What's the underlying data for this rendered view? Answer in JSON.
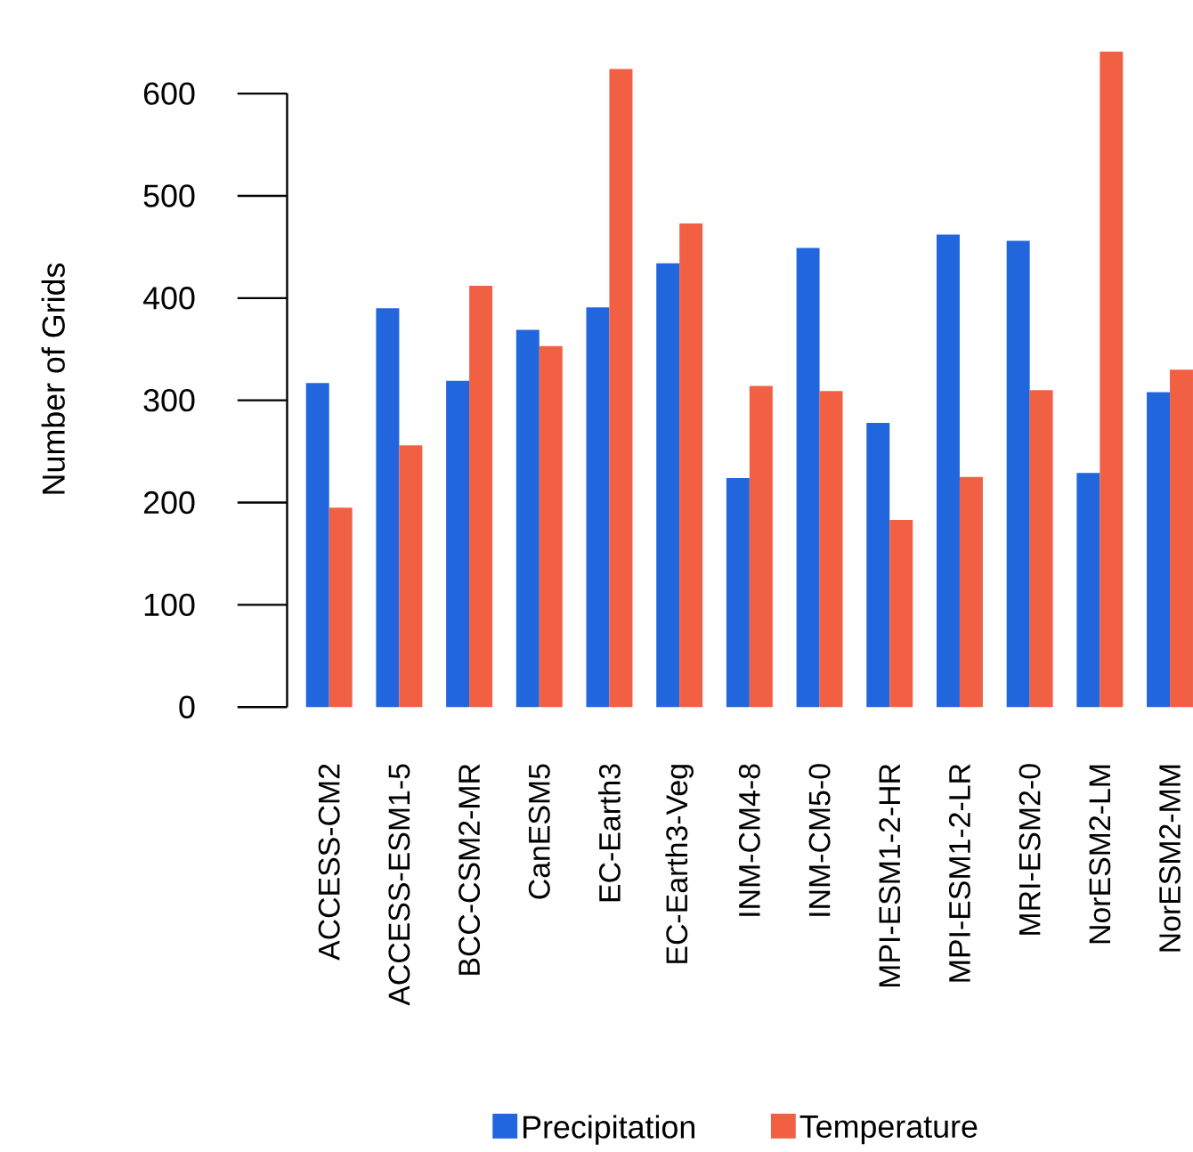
{
  "chart_data": {
    "type": "bar",
    "ylabel": "Number of Grids",
    "categories": [
      "ACCESS-CM2",
      "ACCESS-ESM1-5",
      "BCC-CSM2-MR",
      "CanESM5",
      "EC-Earth3",
      "EC-Earth3-Veg",
      "INM-CM4-8",
      "INM-CM5-0",
      "MPI-ESM1-2-HR",
      "MPI-ESM1-2-LR",
      "MRI-ESM2-0",
      "NorESM2-LM",
      "NorESM2-MM"
    ],
    "series": [
      {
        "name": "Precipitation",
        "color": "#2266dd",
        "values": [
          317,
          390,
          319,
          369,
          391,
          434,
          224,
          449,
          278,
          462,
          456,
          229,
          308
        ]
      },
      {
        "name": "Temperature",
        "color": "#f26044",
        "values": [
          195,
          256,
          412,
          353,
          624,
          473,
          314,
          309,
          183,
          225,
          310,
          641,
          330
        ]
      }
    ],
    "ylim": [
      0,
      643
    ],
    "yticks": [
      0,
      100,
      200,
      300,
      400,
      500,
      600
    ],
    "grid": false,
    "legend": "bottom"
  }
}
